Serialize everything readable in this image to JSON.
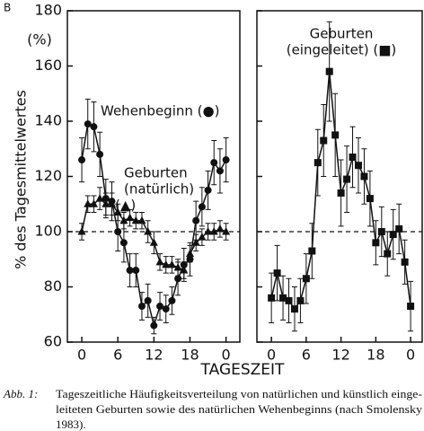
{
  "panel_label": "B",
  "x_label": "TAGESZEIT",
  "caption": {
    "label": "Abb. 1:",
    "lines": [
      "Tageszeitliche Häufigkeitsverteilung von natürlichen und künstlich einge-",
      "leiteten Geburten sowie des natürlichen Wehenbeginns (nach Smolensky",
      "1983)."
    ]
  },
  "chart_data": [
    {
      "type": "line",
      "y_label": "% des Tagesmittelwertes",
      "y_unit": "(%)",
      "x": [
        0,
        1,
        2,
        3,
        4,
        5,
        6,
        7,
        8,
        9,
        10,
        11,
        12,
        13,
        14,
        15,
        16,
        17,
        18,
        19,
        20,
        21,
        22,
        23,
        24
      ],
      "xlim": [
        -2.4,
        26.3
      ],
      "ylim": [
        60,
        180
      ],
      "xticks": [
        0,
        6,
        12,
        18,
        {
          "value": 24,
          "label": "0"
        }
      ],
      "yticks": [
        60,
        80,
        100,
        120,
        140,
        160,
        180
      ],
      "reference_line": 100,
      "annotations": [
        [
          "Wehenbeginn (●)"
        ],
        [
          "Geburten",
          "(natürlich)",
          "(▲)"
        ]
      ],
      "series": [
        {
          "marker": "circle",
          "color": "#111",
          "values": [
            126,
            139,
            138,
            128,
            112,
            111,
            100,
            96,
            86,
            86,
            73,
            75,
            66,
            73,
            72,
            75,
            83,
            88,
            90,
            104,
            109,
            115,
            125,
            122,
            126
          ],
          "errors": [
            8,
            9,
            9,
            8,
            7,
            7,
            7,
            7,
            6,
            6,
            5,
            6,
            3,
            5,
            5,
            5,
            6,
            6,
            6,
            7,
            7,
            7,
            8,
            8,
            8
          ]
        },
        {
          "marker": "triangle",
          "color": "#111",
          "values": [
            100,
            110,
            110,
            112,
            110,
            110,
            107,
            104,
            105,
            104,
            104,
            100,
            96,
            89,
            88,
            88,
            87,
            86,
            92,
            96,
            98,
            100,
            100,
            101,
            100
          ],
          "errors": [
            3,
            3,
            3,
            4,
            4,
            4,
            3,
            3,
            3,
            3,
            3,
            4,
            4,
            3,
            3,
            3,
            3,
            3,
            3,
            3,
            3,
            3,
            3,
            3,
            3
          ]
        }
      ]
    },
    {
      "type": "line",
      "x": [
        0,
        1,
        2,
        3,
        4,
        5,
        6,
        7,
        8,
        9,
        10,
        11,
        12,
        13,
        14,
        15,
        16,
        17,
        18,
        19,
        20,
        21,
        22,
        23,
        24
      ],
      "xlim": [
        -2.5,
        26
      ],
      "ylim": [
        60,
        180
      ],
      "xticks": [
        0,
        6,
        12,
        18,
        {
          "value": 24,
          "label": "0"
        }
      ],
      "reference_line": 100,
      "annotations": [
        [
          "Geburten",
          "(eingeleitet) (■)"
        ]
      ],
      "series": [
        {
          "marker": "square",
          "color": "#111",
          "values": [
            76,
            85,
            76,
            75,
            72,
            75,
            83,
            93,
            125,
            133,
            158,
            135,
            114,
            119,
            127,
            124,
            120,
            112,
            96,
            100,
            92,
            99,
            101,
            89,
            73
          ],
          "errors": [
            9,
            10,
            8,
            8,
            8,
            8,
            9,
            10,
            12,
            13,
            18,
            15,
            12,
            12,
            11,
            10,
            10,
            10,
            8,
            9,
            8,
            9,
            9,
            8,
            9
          ]
        }
      ]
    }
  ]
}
